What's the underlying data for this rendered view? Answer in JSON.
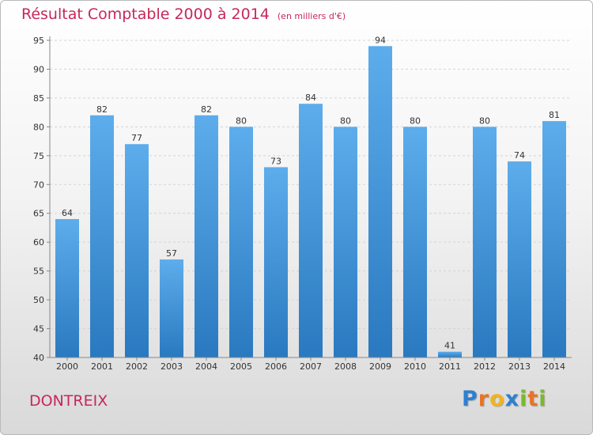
{
  "chart_data": {
    "type": "bar",
    "title": "Résultat Comptable 2000 à 2014",
    "subtitle": "(en milliers d'€)",
    "categories": [
      "2000",
      "2001",
      "2002",
      "2003",
      "2004",
      "2005",
      "2006",
      "2007",
      "2008",
      "2009",
      "2010",
      "2011",
      "2012",
      "2013",
      "2014"
    ],
    "values": [
      64,
      82,
      77,
      57,
      82,
      80,
      73,
      84,
      80,
      94,
      80,
      41,
      80,
      74,
      81
    ],
    "ylim": [
      40,
      95
    ],
    "yticks": [
      40,
      45,
      50,
      55,
      60,
      65,
      70,
      75,
      80,
      85,
      90,
      95
    ],
    "grid": true,
    "xlabel": "",
    "ylabel": "",
    "bar_color": "#3b95dc"
  },
  "footer": {
    "commune": "DONTREIX",
    "logo_letters": [
      "P",
      "r",
      "o",
      "x",
      "i",
      "t",
      "i"
    ],
    "logo_colors": [
      "#2f7fd0",
      "#e8732a",
      "#f2b41c",
      "#2f7fd0",
      "#7cb82f",
      "#e8732a",
      "#7cb82f"
    ]
  }
}
